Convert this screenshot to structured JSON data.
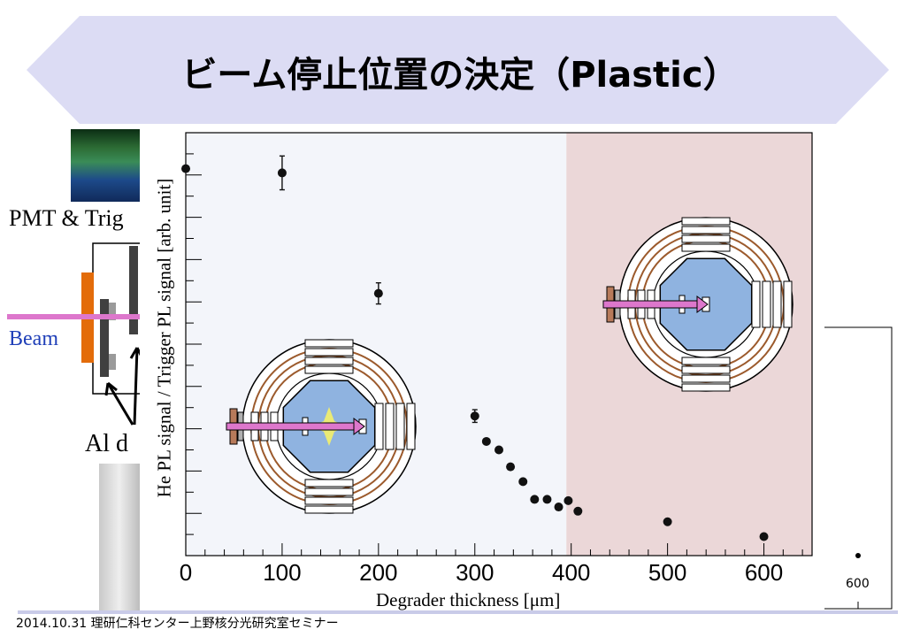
{
  "slide": {
    "title": "ビーム停止位置の決定（Plastic）",
    "pmt_label": "PMT & Trig",
    "beam_label": "Beam",
    "al_label": "Al d",
    "footer": "2014.10.31  理研仁科センター上野核分光研究室セミナー"
  },
  "colors": {
    "banner": "#dcdcf4",
    "left_region": "#f3f5fa",
    "right_region": "#ebd7d8",
    "beam_arrow": "#dd77cc",
    "detector_blue": "#8fb3e0",
    "ring_brown": "#9c5a2c",
    "marker": "#111111"
  },
  "chart_data": {
    "type": "scatter",
    "xlabel": "Degrader thickness [μm]",
    "ylabel": "He PL signal / Trigger PL signal [arb. unit]",
    "xlim": [
      0,
      650
    ],
    "x_ticks": [
      "0",
      "100",
      "200",
      "300",
      "400",
      "500",
      "600"
    ],
    "ylim": [
      0,
      1.0
    ],
    "grid": false,
    "regions": [
      {
        "from": 0,
        "to": 395,
        "color": "light-gray"
      },
      {
        "from": 395,
        "to": 650,
        "color": "light-red"
      }
    ],
    "series": [
      {
        "x": [
          0,
          100,
          200,
          300,
          312,
          325,
          337,
          350,
          362,
          375,
          387,
          397,
          407,
          500,
          600
        ],
        "y": [
          0.915,
          0.905,
          0.62,
          0.33,
          0.27,
          0.25,
          0.21,
          0.175,
          0.133,
          0.133,
          0.115,
          0.13,
          0.105,
          0.08,
          0.045
        ],
        "err": [
          0,
          0.04,
          0.025,
          0.015,
          0,
          0,
          0,
          0,
          0,
          0,
          0,
          0,
          0,
          0,
          0
        ]
      }
    ],
    "secondary_axis_tick": "600"
  }
}
